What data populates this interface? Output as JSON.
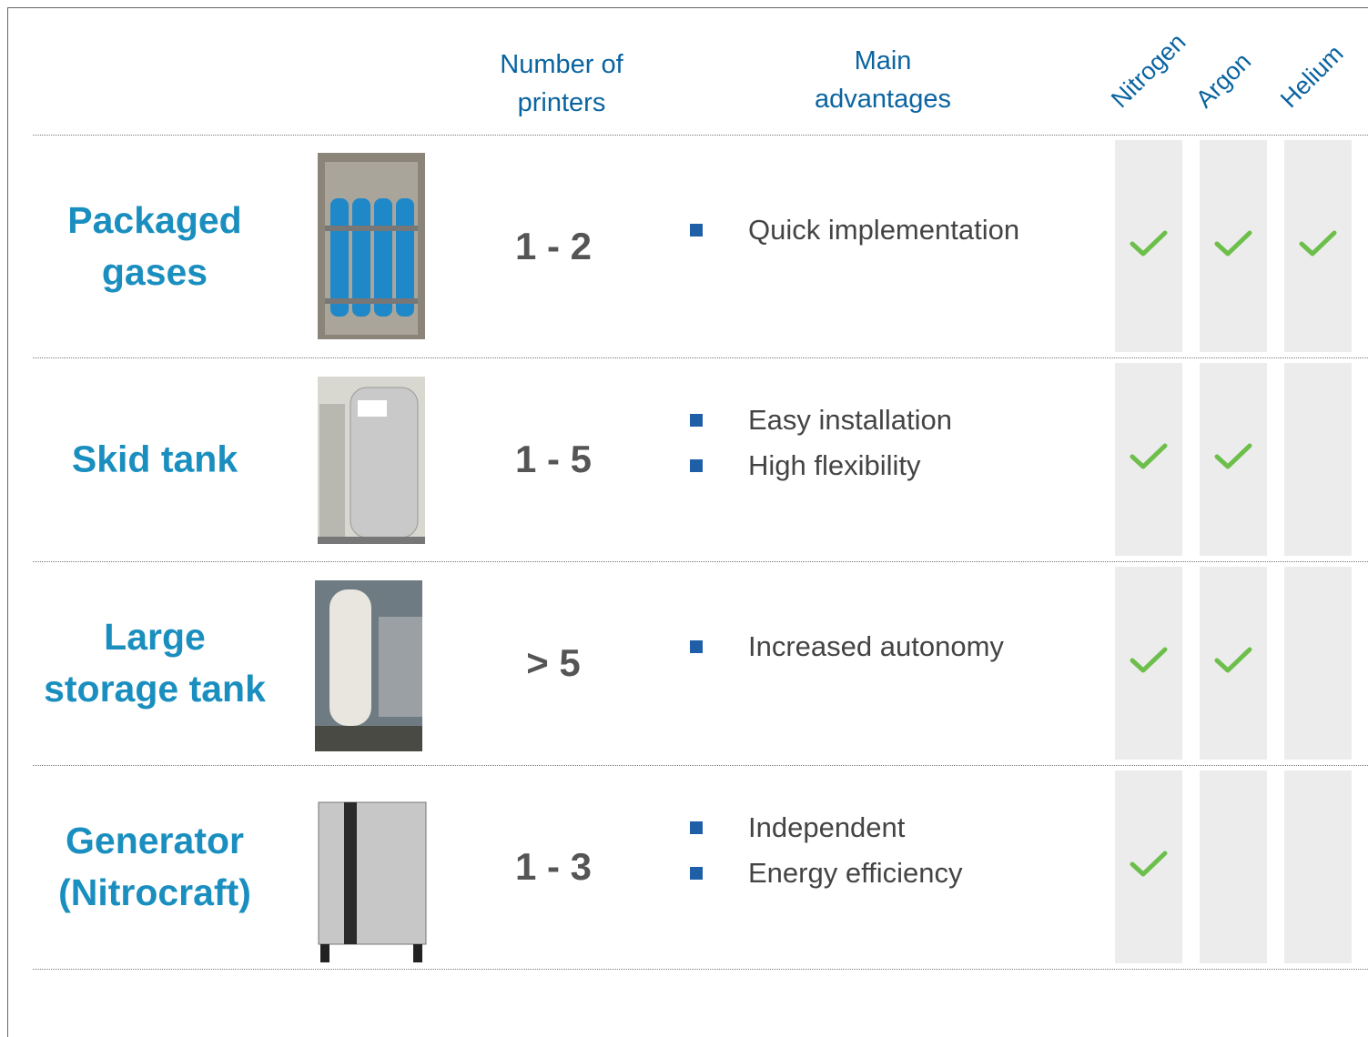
{
  "header": {
    "printers": "Number of printers",
    "advantages": "Main advantages",
    "gases": [
      "Nitrogen",
      "Argon",
      "Helium"
    ]
  },
  "rows": [
    {
      "name": "Packaged gases",
      "printers": "1 - 2",
      "advantages": [
        "Quick implementation"
      ],
      "gases": [
        true,
        true,
        true
      ]
    },
    {
      "name": "Skid tank",
      "printers": "1 - 5",
      "advantages": [
        "Easy installation",
        "High flexibility"
      ],
      "gases": [
        true,
        true,
        false
      ]
    },
    {
      "name": "Large storage tank",
      "printers": "> 5",
      "advantages": [
        "Increased autonomy"
      ],
      "gases": [
        true,
        true,
        false
      ]
    },
    {
      "name": "Generator (Nitrocraft)",
      "printers": "1 - 3",
      "advantages": [
        "Independent",
        "Energy efficiency"
      ],
      "gases": [
        true,
        false,
        false
      ]
    }
  ]
}
